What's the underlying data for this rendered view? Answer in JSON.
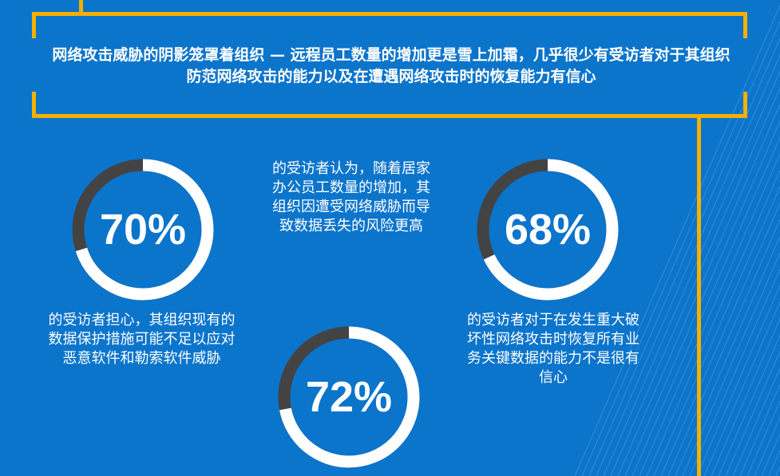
{
  "headline": "网络攻击威胁的阴影笼罩着组织 — 远程员工数量的增加更是雪上加霜，几乎很少有受访者对于其组织防范网络攻击的能力以及在遭遇网络攻击时的恢复能力有信心",
  "colors": {
    "background": "#0b74cb",
    "frame": "#f5b000",
    "ring": "#ffffff",
    "ring_remainder": "#434343"
  },
  "stats": [
    {
      "value": "70%",
      "fraction": 0.7,
      "caption": "的受访者担心，其组织现有的数据保护措施可能不足以应对恶意软件和勒索软件威胁"
    },
    {
      "value": "68%",
      "fraction": 0.68,
      "caption": "的受访者对于在发生重大破坏性网络攻击时恢复所有业务关键数据的能力不是很有信心"
    },
    {
      "value": "72%",
      "fraction": 0.72,
      "caption": "的受访者认为，随着居家办公员工数量的增加，其组织因遭受网络威胁而导致数据丢失的风险更高"
    }
  ]
}
